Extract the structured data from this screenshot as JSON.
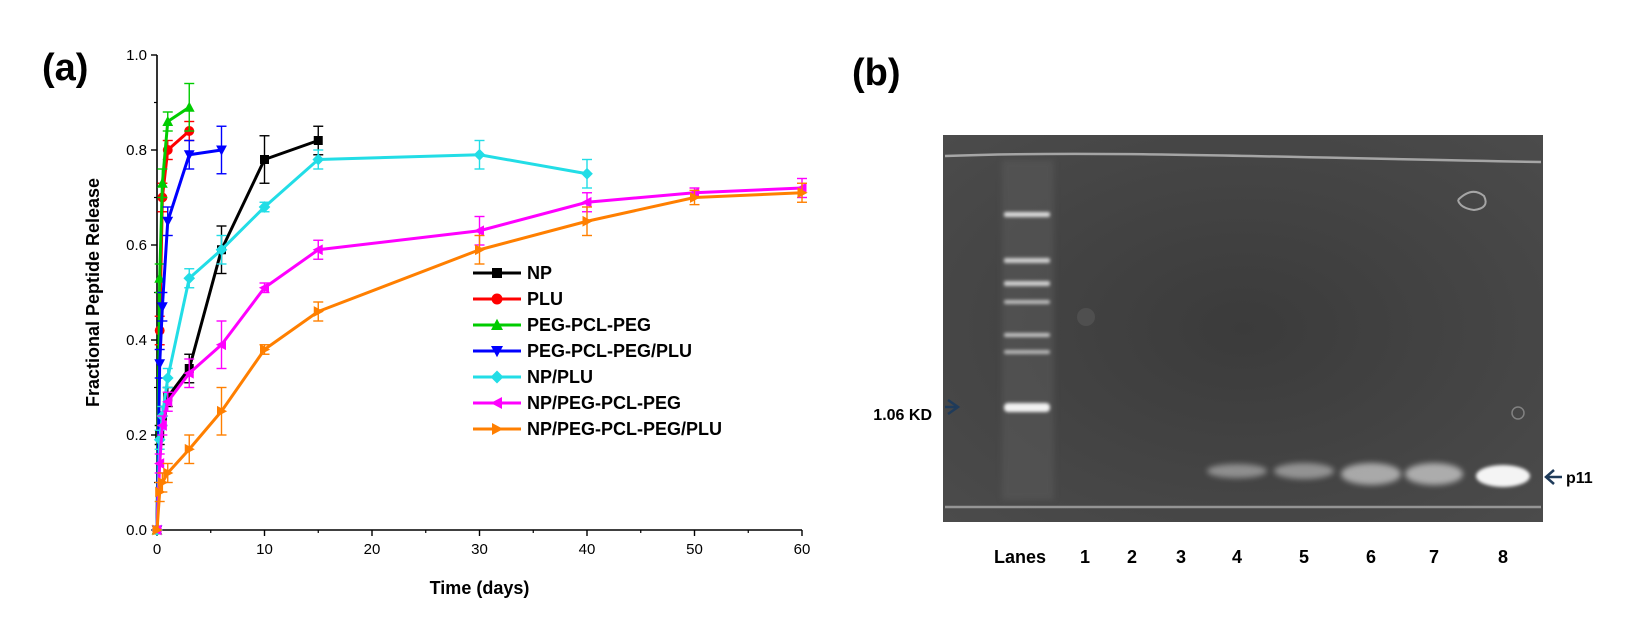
{
  "panel_a": {
    "label": "(a)"
  },
  "panel_b": {
    "label": "(b)",
    "lanes_label": "Lanes",
    "lanes": [
      "1",
      "2",
      "3",
      "4",
      "5",
      "6",
      "7",
      "8"
    ],
    "marker_label": "1.06 KD",
    "band_label": "p11",
    "colors": {
      "gel_background": "#434343",
      "band": "#e6e6e6",
      "arrow": "#1f3b5a"
    }
  },
  "chart_data": {
    "type": "line",
    "xlabel": "Time (days)",
    "ylabel": "Fractional Peptide Release",
    "xlim": [
      0,
      60
    ],
    "ylim": [
      0,
      1.0
    ],
    "xticks": [
      0,
      10,
      20,
      30,
      40,
      50,
      60
    ],
    "yticks": [
      0.0,
      0.2,
      0.4,
      0.6,
      0.8,
      1.0
    ],
    "xtick_labels": [
      "0",
      "10",
      "20",
      "30",
      "40",
      "50",
      "60"
    ],
    "ytick_labels": [
      "0.0",
      "0.2",
      "0.4",
      "0.6",
      "0.8",
      "1.0"
    ],
    "grid": false,
    "legend_position": "center-right",
    "series": [
      {
        "name": "NP",
        "color": "#000000",
        "marker": "square",
        "x": [
          0,
          0.25,
          0.5,
          1,
          3,
          6,
          10,
          15
        ],
        "y": [
          0,
          0.2,
          0.24,
          0.28,
          0.34,
          0.59,
          0.78,
          0.82
        ],
        "err": [
          0,
          0.02,
          0.02,
          0.02,
          0.03,
          0.05,
          0.05,
          0.03
        ]
      },
      {
        "name": "PLU",
        "color": "#ff0000",
        "marker": "circle",
        "x": [
          0,
          0.25,
          0.5,
          1,
          3
        ],
        "y": [
          0,
          0.42,
          0.7,
          0.8,
          0.84
        ],
        "err": [
          0,
          0.03,
          0.03,
          0.02,
          0.02
        ]
      },
      {
        "name": "PEG-PCL-PEG",
        "color": "#00cc00",
        "marker": "triangle-up",
        "x": [
          0,
          0.25,
          0.5,
          1,
          3
        ],
        "y": [
          0,
          0.53,
          0.73,
          0.86,
          0.89
        ],
        "err": [
          0,
          0.03,
          0.03,
          0.02,
          0.05
        ]
      },
      {
        "name": "PEG-PCL-PEG/PLU",
        "color": "#0000ff",
        "marker": "triangle-down",
        "x": [
          0,
          0.25,
          0.5,
          1,
          3,
          6
        ],
        "y": [
          0,
          0.35,
          0.47,
          0.65,
          0.79,
          0.8
        ],
        "err": [
          0,
          0.03,
          0.03,
          0.03,
          0.03,
          0.05
        ]
      },
      {
        "name": "NP/PLU",
        "color": "#22dde6",
        "marker": "diamond",
        "x": [
          0,
          0.25,
          0.5,
          1,
          3,
          6,
          10,
          15,
          30,
          40
        ],
        "y": [
          0,
          0.19,
          0.24,
          0.32,
          0.53,
          0.59,
          0.68,
          0.78,
          0.79,
          0.75
        ],
        "err": [
          0,
          0.02,
          0.02,
          0.02,
          0.02,
          0.03,
          0.01,
          0.02,
          0.03,
          0.03
        ]
      },
      {
        "name": "NP/PEG-PCL-PEG",
        "color": "#ff00ff",
        "marker": "triangle-left",
        "x": [
          0,
          0.25,
          0.5,
          1,
          3,
          6,
          10,
          15,
          30,
          40,
          50,
          60
        ],
        "y": [
          0,
          0.14,
          0.22,
          0.27,
          0.33,
          0.39,
          0.51,
          0.59,
          0.63,
          0.69,
          0.71,
          0.72
        ],
        "err": [
          0,
          0.02,
          0.02,
          0.02,
          0.03,
          0.05,
          0.01,
          0.02,
          0.03,
          0.02,
          0.01,
          0.02
        ]
      },
      {
        "name": "NP/PEG-PCL-PEG/PLU",
        "color": "#ff7f00",
        "marker": "triangle-right",
        "x": [
          0,
          0.25,
          0.5,
          1,
          3,
          6,
          10,
          15,
          30,
          40,
          50,
          60
        ],
        "y": [
          0,
          0.08,
          0.1,
          0.12,
          0.17,
          0.25,
          0.38,
          0.46,
          0.59,
          0.65,
          0.7,
          0.71
        ],
        "err": [
          0,
          0.02,
          0.02,
          0.02,
          0.03,
          0.05,
          0.01,
          0.02,
          0.03,
          0.03,
          0.015,
          0.02
        ]
      }
    ]
  }
}
